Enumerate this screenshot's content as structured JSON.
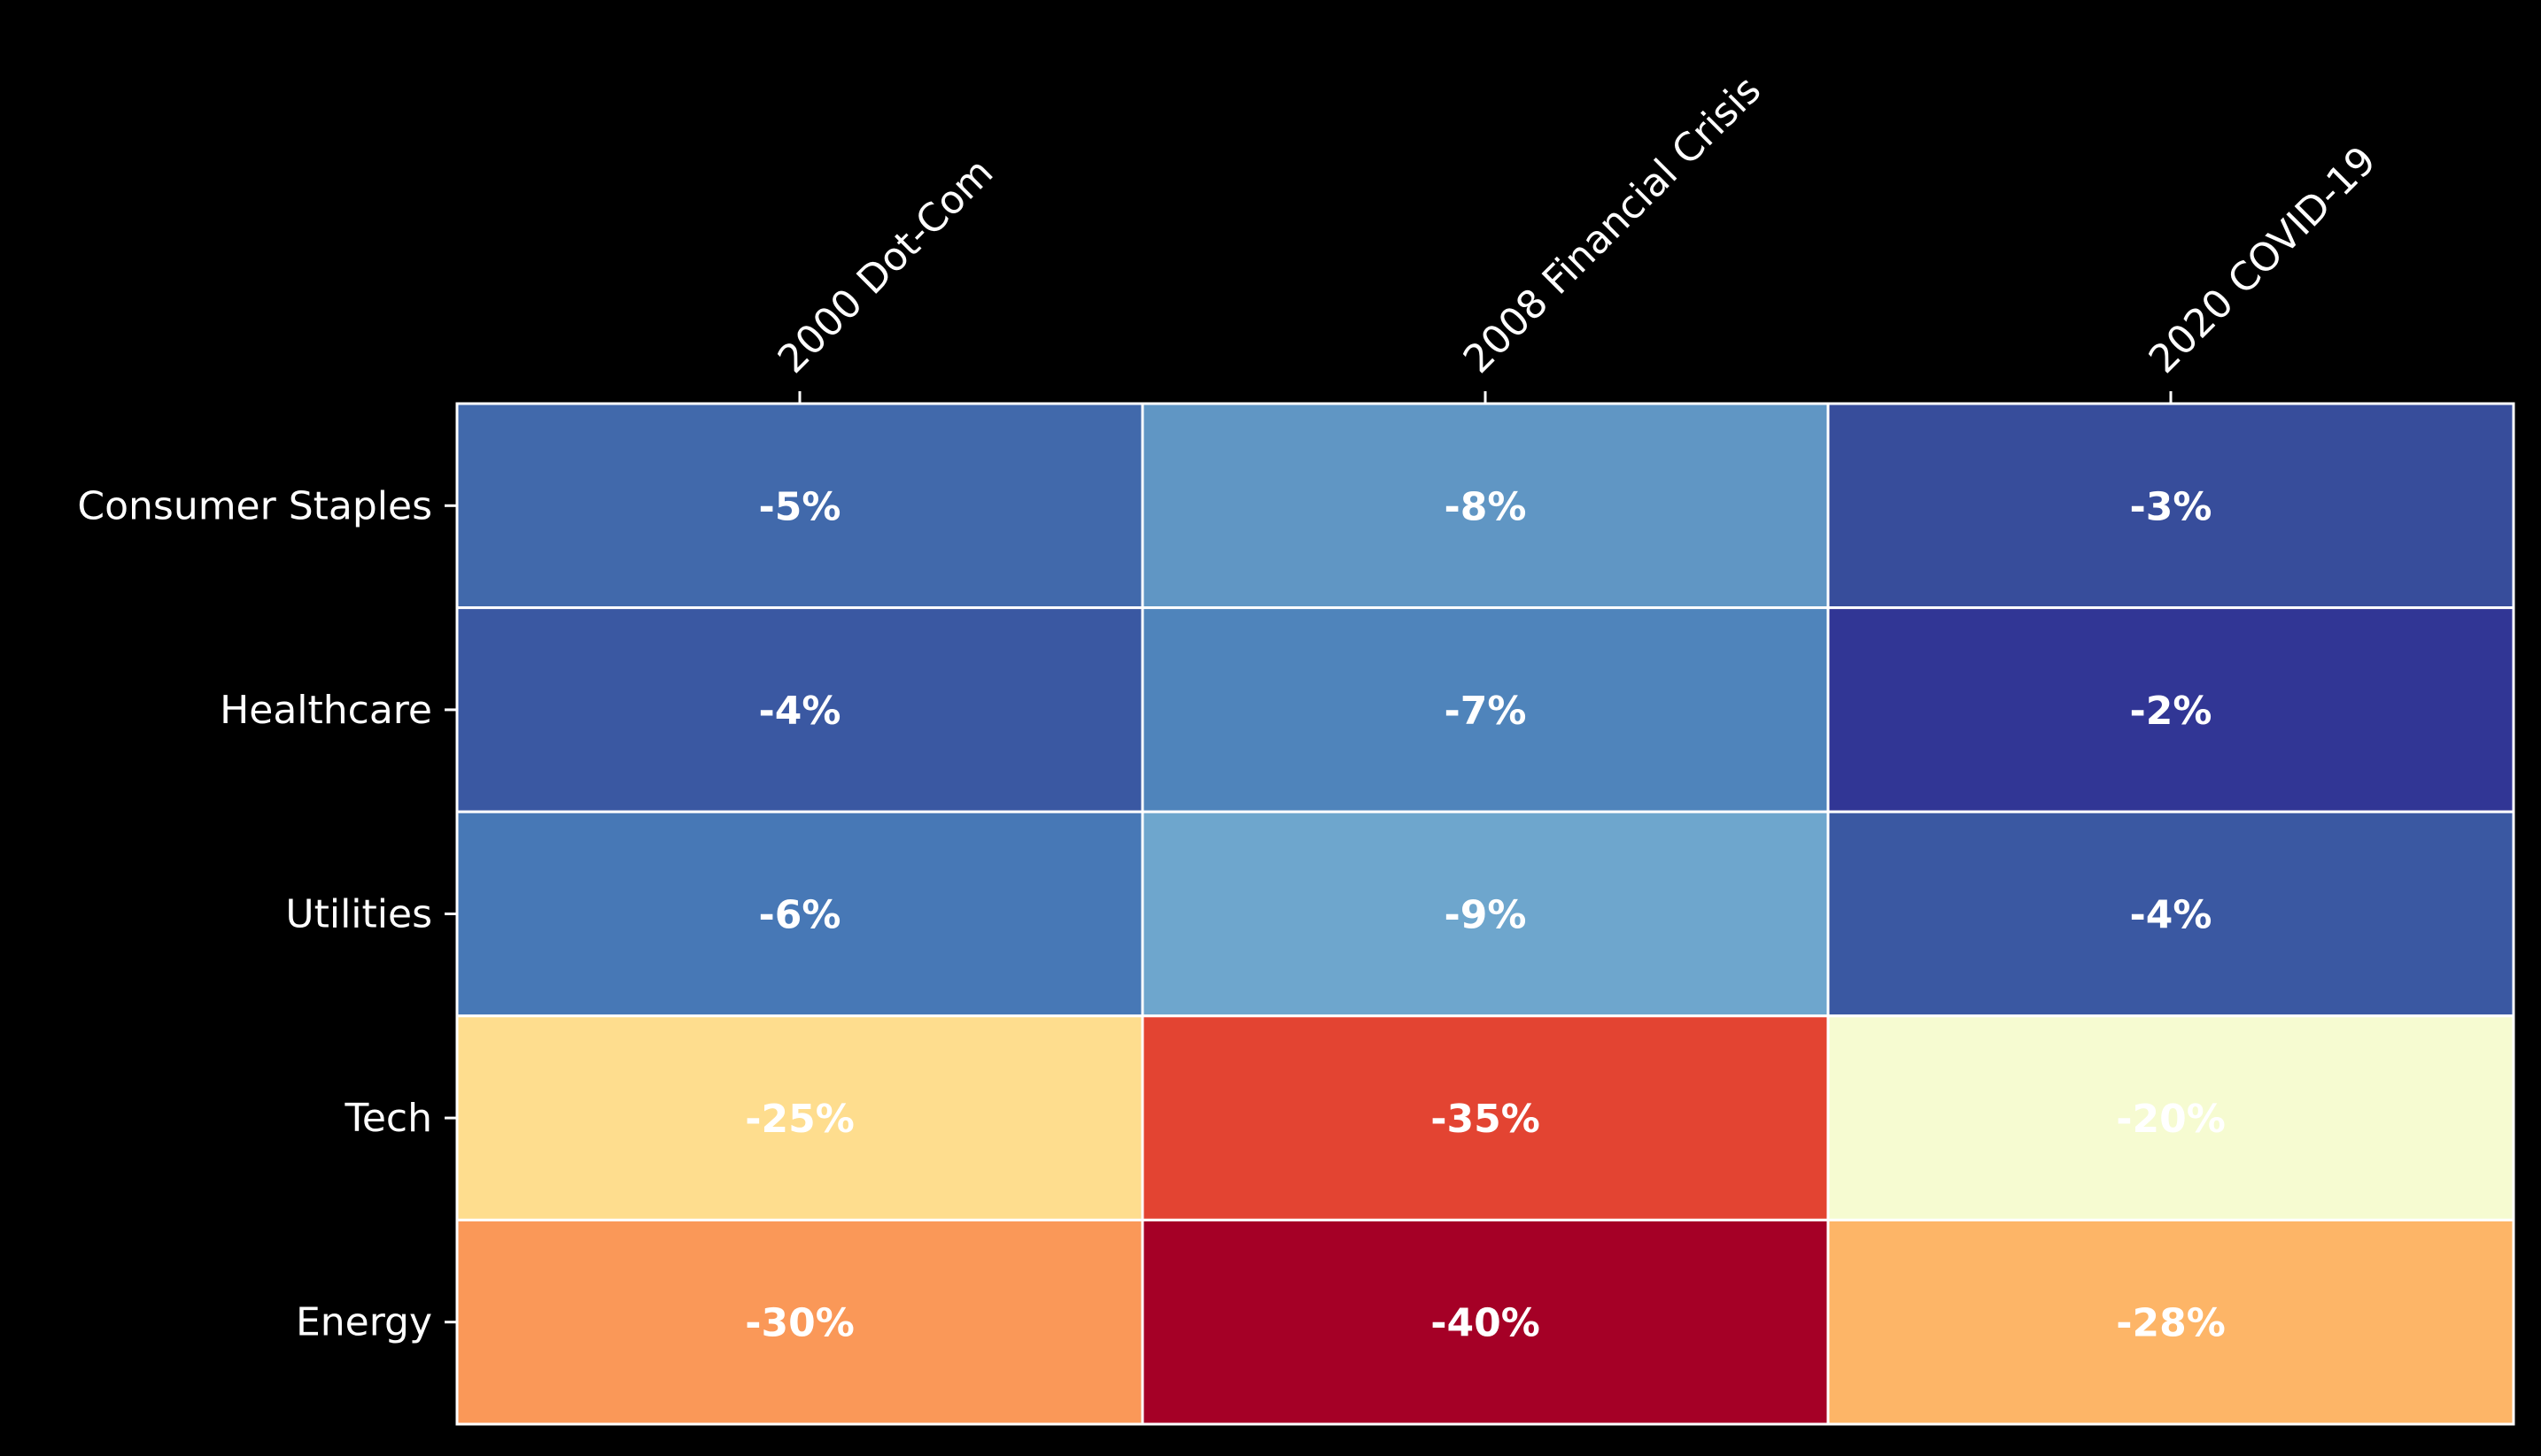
{
  "chart_data": {
    "type": "heatmap",
    "title": "",
    "xlabel": "",
    "ylabel": "",
    "x_categories": [
      "2000 Dot-Com",
      "2008 Financial Crisis",
      "2020 COVID-19"
    ],
    "y_categories": [
      "Consumer Staples",
      "Healthcare",
      "Utilities",
      "Tech",
      "Energy"
    ],
    "values": [
      [
        -5,
        -8,
        -3
      ],
      [
        -4,
        -7,
        -2
      ],
      [
        -6,
        -9,
        -4
      ],
      [
        -25,
        -35,
        -20
      ],
      [
        -30,
        -40,
        -28
      ]
    ],
    "cell_labels": [
      [
        "-5%",
        "-8%",
        "-3%"
      ],
      [
        "-4%",
        "-7%",
        "-2%"
      ],
      [
        "-6%",
        "-9%",
        "-4%"
      ],
      [
        "-25%",
        "-35%",
        "-20%"
      ],
      [
        "-30%",
        "-40%",
        "-28%"
      ]
    ],
    "colormap": "RdYlBu",
    "cell_colors": [
      [
        "#4169ab",
        "#6096c4",
        "#374d9b"
      ],
      [
        "#3a58a2",
        "#4f84bb",
        "#313695"
      ],
      [
        "#4778b6",
        "#6ea6cd",
        "#3a58a2"
      ],
      [
        "#fedd8e",
        "#e34432",
        "#f6fbd1"
      ],
      [
        "#fa9858",
        "#a50026",
        "#fdb567"
      ]
    ],
    "background_color": "#000000",
    "text_color": "#ffffff",
    "grid_color": "#ffffff",
    "x_tick_position": "top",
    "x_tick_rotation": 45,
    "legend": "none"
  }
}
